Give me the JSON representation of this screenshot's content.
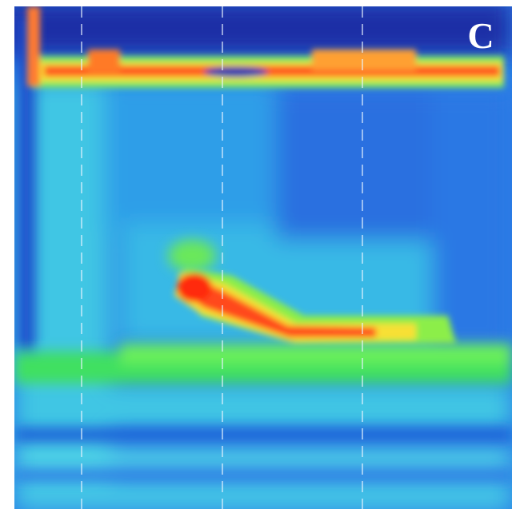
{
  "panel_label": "C"
}
